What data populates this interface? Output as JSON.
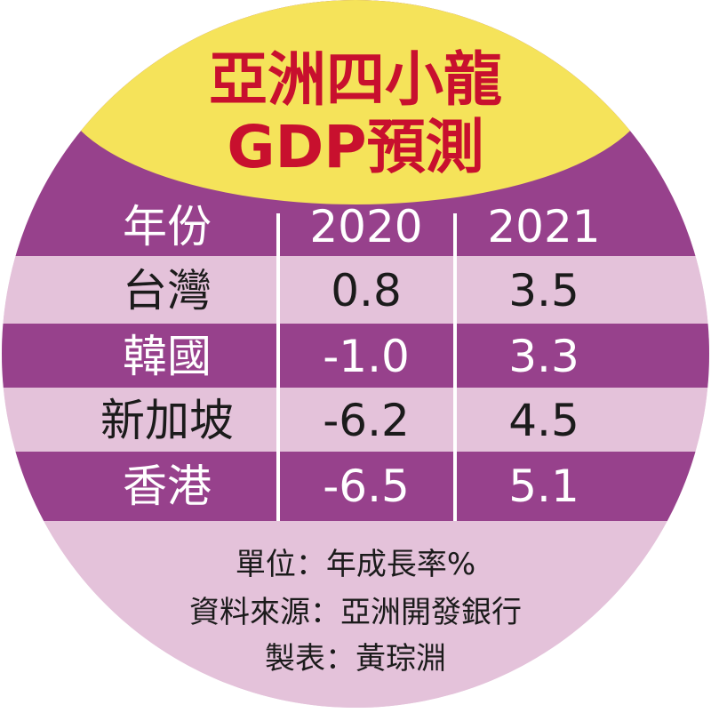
{
  "title_line1": "亞洲四小龍",
  "title_line2": "GDP預測",
  "header": {
    "label": "年份",
    "col1": "2020",
    "col2": "2021"
  },
  "rows": [
    {
      "name": "台灣",
      "v2020": "0.8",
      "v2021": "3.5"
    },
    {
      "name": "韓國",
      "v2020": "-1.0",
      "v2021": "3.3"
    },
    {
      "name": "新加坡",
      "v2020": "-6.2",
      "v2021": "4.5"
    },
    {
      "name": "香港",
      "v2020": "-6.5",
      "v2021": "5.1"
    }
  ],
  "footer": {
    "unit": "單位：年成長率%",
    "source": "資料來源：亞洲開發銀行",
    "author": "製表：黃琮淵"
  },
  "colors": {
    "purple": "#97418c",
    "light_pink": "#e4c2da",
    "yellow": "#f5e35a",
    "red_title": "#c8102e",
    "dark_text": "#1b1b1b"
  },
  "chart_data": {
    "type": "table",
    "title": "亞洲四小龍 GDP預測",
    "columns": [
      "年份",
      "2020",
      "2021"
    ],
    "rows": [
      [
        "台灣",
        0.8,
        3.5
      ],
      [
        "韓國",
        -1.0,
        3.3
      ],
      [
        "新加坡",
        -6.2,
        4.5
      ],
      [
        "香港",
        -6.5,
        5.1
      ]
    ],
    "unit": "單位：年成長率%",
    "source": "資料來源：亞洲開發銀行"
  }
}
